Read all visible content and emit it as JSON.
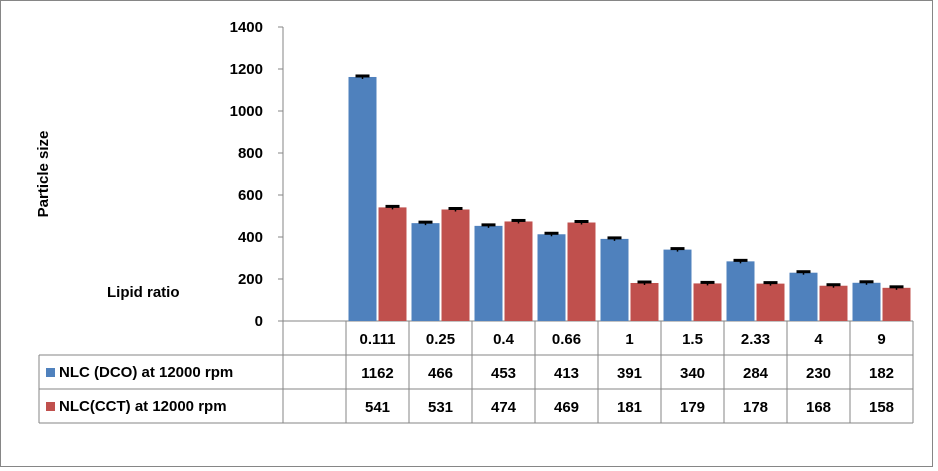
{
  "chart_data": {
    "type": "bar",
    "ylabel": "Particle size",
    "xlabel": "Lipid ratio",
    "ylim": [
      0,
      1400
    ],
    "yticks": [
      0,
      200,
      400,
      600,
      800,
      1000,
      1200,
      1400
    ],
    "grid": false,
    "legend_placement": "data-table-left",
    "categories": [
      "0.111",
      "0.25",
      "0.4",
      "0.66",
      "1",
      "1.5",
      "2.33",
      "4",
      "9"
    ],
    "series": [
      {
        "name": "NLC (DCO) at 12000 rpm",
        "color": "#4F81BD",
        "values": [
          1162,
          466,
          453,
          413,
          391,
          340,
          284,
          230,
          182
        ]
      },
      {
        "name": "NLC(CCT) at 12000 rpm",
        "color": "#C0504D",
        "values": [
          541,
          531,
          474,
          469,
          181,
          179,
          178,
          168,
          158
        ]
      }
    ],
    "error_bar_color": "#000000"
  }
}
